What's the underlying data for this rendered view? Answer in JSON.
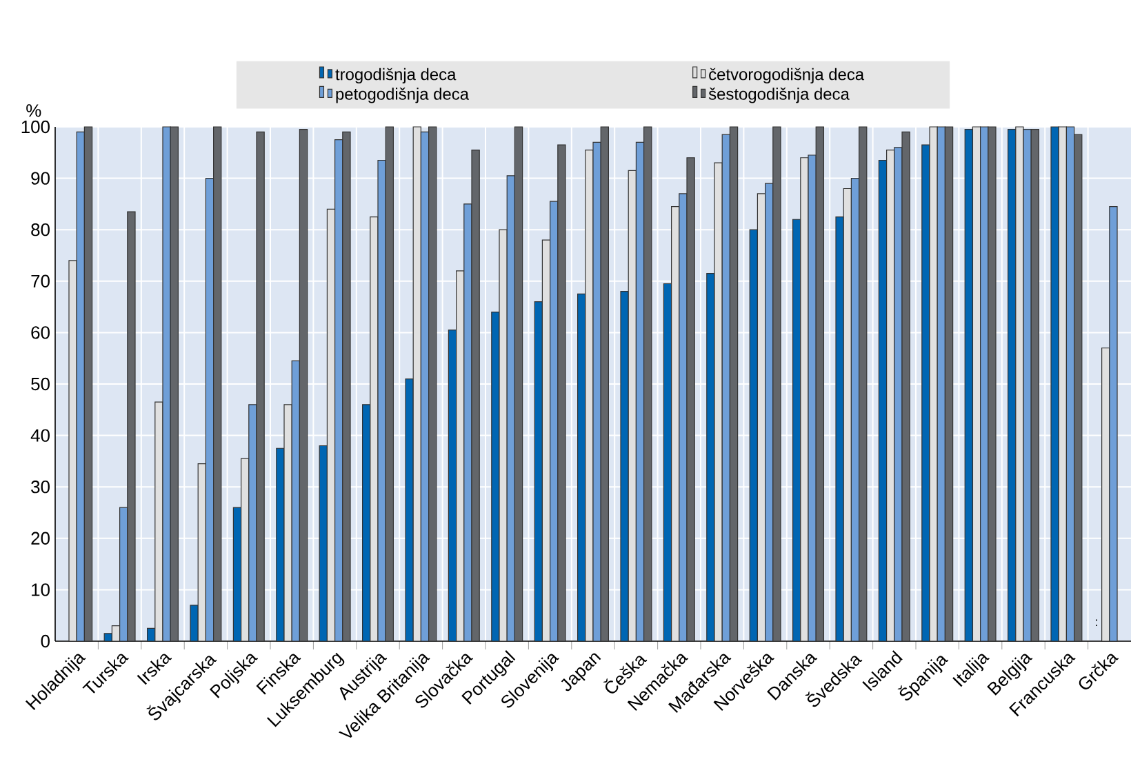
{
  "chart_data": {
    "type": "bar",
    "ylabel": "%",
    "categories": [
      "Holadnija",
      "Turska",
      "Irska",
      "Švajcarska",
      "Poljska",
      "Finska",
      "Luksemburg",
      "Austrija",
      "Velika Britanija",
      "Slovačka",
      "Portugal",
      "Slovenija",
      "Japan",
      "Češka",
      "Nemačka",
      "Mađarska",
      "Norveška",
      "Danska",
      "Švedska",
      "Island",
      "Španija",
      "Italija",
      "Belgija",
      "Francuska",
      "Grčka"
    ],
    "series": [
      {
        "name": "trogodišnja deca",
        "color": "#0066b3",
        "values": [
          null,
          1.5,
          2.5,
          7,
          26,
          37.5,
          38,
          46,
          51,
          60.5,
          64,
          66,
          67.5,
          68,
          69.5,
          71.5,
          80,
          82,
          82.5,
          93.5,
          96.5,
          99.5,
          99.5,
          100,
          null
        ]
      },
      {
        "name": "četvorogodišnja deca",
        "color": "#e0e0e0",
        "values": [
          74,
          3,
          46.5,
          34.5,
          35.5,
          46,
          84,
          82.5,
          100,
          72,
          80,
          78,
          95.5,
          91.5,
          84.5,
          93,
          87,
          94,
          88,
          95.5,
          100,
          100,
          100,
          100,
          57
        ]
      },
      {
        "name": "petogodišnja deca",
        "color": "#6f9fd8",
        "values": [
          99,
          26,
          100,
          90,
          46,
          54.5,
          97.5,
          93.5,
          99,
          85,
          90.5,
          85.5,
          97,
          97,
          87,
          98.5,
          89,
          94.5,
          90,
          96,
          100,
          100,
          99.5,
          100,
          84.5
        ]
      },
      {
        "name": "šestogodišnja deca",
        "color": "#63666a",
        "values": [
          100,
          83.5,
          100,
          100,
          99,
          99.5,
          99,
          100,
          100,
          95.5,
          100,
          96.5,
          100,
          100,
          94,
          100,
          100,
          100,
          100,
          99,
          100,
          100,
          99.5,
          98.5,
          null
        ]
      }
    ],
    "annotations": [
      {
        "text": ":",
        "x": "Grčka",
        "y": 2
      }
    ],
    "ylim": [
      0,
      100
    ],
    "yticks": [
      0,
      10,
      20,
      30,
      40,
      50,
      60,
      70,
      80,
      90,
      100
    ],
    "grid": true,
    "legend": "top"
  }
}
